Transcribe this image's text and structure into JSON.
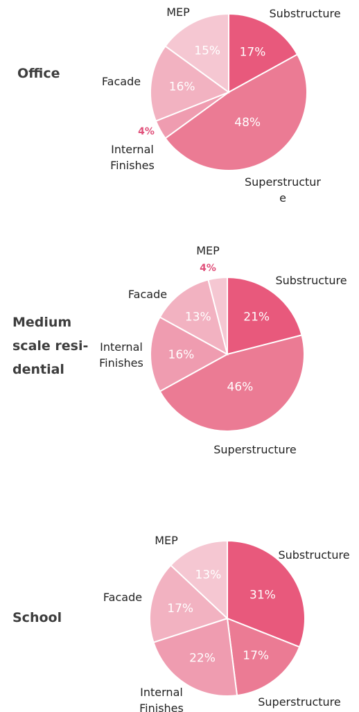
{
  "colors": {
    "Substructure": "#e8597c",
    "Superstructure": "#eb7b94",
    "Internal Finishes": "#ef9cb0",
    "Facade": "#f2b2c1",
    "MEP": "#f5c7d2",
    "small_pct_text": "#e0507a",
    "separator": "#ffffff"
  },
  "chart_data": [
    {
      "type": "pie",
      "title": "Office",
      "start": "12 o'clock",
      "direction": "clockwise",
      "slices": [
        {
          "label": "Substructure",
          "label_lines": [
            "Substructure"
          ],
          "value": 17,
          "pct_text": "17%"
        },
        {
          "label": "Superstructure",
          "label_lines": [
            "Superstructur",
            "e"
          ],
          "value": 48,
          "pct_text": "48%"
        },
        {
          "label": "Internal Finishes",
          "label_lines": [
            "Internal",
            "Finishes"
          ],
          "value": 4,
          "pct_text": "4%"
        },
        {
          "label": "Facade",
          "label_lines": [
            "Facade"
          ],
          "value": 16,
          "pct_text": "16%"
        },
        {
          "label": "MEP",
          "label_lines": [
            "MEP"
          ],
          "value": 15,
          "pct_text": "15%"
        }
      ]
    },
    {
      "type": "pie",
      "title": "Medium scale resi- dential",
      "title_lines": [
        "Medium",
        "scale resi-",
        "dential"
      ],
      "start": "12 o'clock",
      "direction": "clockwise",
      "slices": [
        {
          "label": "Substructure",
          "label_lines": [
            "Substructure"
          ],
          "value": 21,
          "pct_text": "21%"
        },
        {
          "label": "Superstructure",
          "label_lines": [
            "Superstructure"
          ],
          "value": 46,
          "pct_text": "46%"
        },
        {
          "label": "Internal Finishes",
          "label_lines": [
            "Internal",
            "Finishes"
          ],
          "value": 16,
          "pct_text": "16%"
        },
        {
          "label": "Facade",
          "label_lines": [
            "Facade"
          ],
          "value": 13,
          "pct_text": "13%"
        },
        {
          "label": "MEP",
          "label_lines": [
            "MEP"
          ],
          "value": 4,
          "pct_text": "4%"
        }
      ]
    },
    {
      "type": "pie",
      "title": "School",
      "start": "12 o'clock",
      "direction": "clockwise",
      "slices": [
        {
          "label": "Substructure",
          "label_lines": [
            "Substructure"
          ],
          "value": 31,
          "pct_text": "31%"
        },
        {
          "label": "Superstructure",
          "label_lines": [
            "Superstructure"
          ],
          "value": 17,
          "pct_text": "17%"
        },
        {
          "label": "Internal Finishes",
          "label_lines": [
            "Internal",
            "Finishes"
          ],
          "value": 22,
          "pct_text": "22%"
        },
        {
          "label": "Facade",
          "label_lines": [
            "Facade"
          ],
          "value": 17,
          "pct_text": "17%"
        },
        {
          "label": "MEP",
          "label_lines": [
            "MEP"
          ],
          "value": 13,
          "pct_text": "13%"
        }
      ]
    }
  ]
}
